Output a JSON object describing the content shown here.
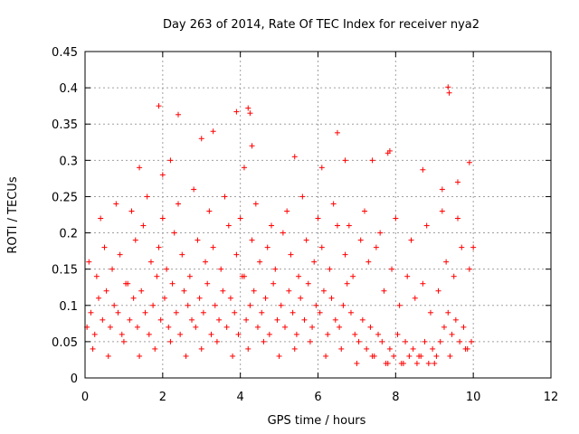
{
  "chart_data": {
    "type": "scatter",
    "title": "Day 263 of 2014, Rate Of TEC Index for receiver nya2",
    "xlabel": "GPS time / hours",
    "ylabel": "ROTI / TECUs",
    "xlim": [
      0,
      12
    ],
    "ylim": [
      0,
      0.45
    ],
    "x_ticks": [
      0,
      2,
      4,
      6,
      8,
      10,
      12
    ],
    "x_tick_labels": [
      "0",
      "2",
      "4",
      "6",
      "8",
      "10",
      "12"
    ],
    "y_ticks": [
      0,
      0.05,
      0.1,
      0.15,
      0.2,
      0.25,
      0.3,
      0.35,
      0.4,
      0.45
    ],
    "y_tick_labels": [
      "0",
      "0.05",
      "0.1",
      "0.15",
      "0.2",
      "0.25",
      "0.3",
      "0.35",
      "0.4",
      "0.45"
    ],
    "grid": true,
    "marker": "+",
    "color": "#ff0000",
    "series": [
      {
        "name": "nya2",
        "x": [
          0.05,
          0.15,
          0.25,
          0.35,
          0.45,
          0.55,
          0.65,
          0.75,
          0.85,
          0.95,
          1.05,
          1.15,
          1.25,
          1.35,
          1.45,
          1.55,
          1.65,
          1.75,
          1.85,
          1.95,
          2.05,
          2.15,
          2.25,
          2.35,
          2.45,
          2.55,
          2.65,
          2.75,
          2.85,
          2.95,
          3.05,
          3.15,
          3.25,
          3.35,
          3.45,
          3.55,
          3.65,
          3.75,
          3.85,
          3.95,
          4.05,
          4.15,
          4.25,
          4.35,
          4.45,
          4.55,
          4.65,
          4.75,
          4.85,
          4.95,
          5.05,
          5.15,
          5.25,
          5.35,
          5.45,
          5.55,
          5.65,
          5.75,
          5.85,
          5.95,
          6.05,
          6.15,
          6.25,
          6.35,
          6.45,
          6.55,
          6.65,
          6.75,
          6.85,
          6.95,
          7.05,
          7.15,
          7.25,
          7.35,
          7.45,
          7.55,
          7.65,
          7.75,
          7.85,
          7.95,
          8.05,
          8.15,
          8.25,
          8.35,
          8.45,
          8.55,
          8.65,
          8.75,
          8.85,
          8.95,
          9.05,
          9.15,
          9.25,
          9.35,
          9.45,
          9.55,
          9.65,
          9.75,
          9.85,
          9.95,
          0.1,
          0.3,
          0.5,
          0.7,
          0.9,
          1.1,
          1.3,
          1.5,
          1.7,
          1.9,
          2.1,
          2.3,
          2.5,
          2.7,
          2.9,
          3.1,
          3.3,
          3.5,
          3.7,
          3.9,
          4.1,
          4.3,
          4.5,
          4.7,
          4.9,
          5.1,
          5.3,
          5.5,
          5.7,
          5.9,
          6.1,
          6.3,
          6.5,
          6.7,
          6.9,
          7.1,
          7.3,
          7.5,
          7.7,
          7.9,
          8.1,
          8.3,
          8.5,
          8.7,
          8.9,
          9.1,
          9.3,
          9.5,
          9.7,
          9.9,
          0.2,
          0.6,
          1.0,
          1.4,
          1.8,
          2.2,
          2.6,
          3.0,
          3.4,
          3.8,
          4.2,
          4.6,
          5.0,
          5.4,
          5.8,
          6.2,
          6.6,
          7.0,
          7.4,
          7.8,
          8.2,
          8.6,
          9.0,
          9.4,
          9.8,
          1.9,
          2.4,
          3.9,
          4.2,
          4.25,
          6.5,
          7.85,
          9.35,
          9.38,
          9.9,
          1.4,
          2.0,
          2.2,
          3.0,
          3.3,
          4.1,
          4.3,
          5.4,
          6.1,
          6.7,
          7.4,
          7.8,
          8.7,
          9.2,
          9.6,
          0.4,
          0.8,
          1.2,
          1.6,
          2.0,
          2.4,
          2.8,
          3.2,
          3.6,
          4.0,
          4.4,
          4.8,
          5.2,
          5.6,
          6.0,
          6.4,
          6.8,
          7.2,
          7.6,
          8.0,
          8.4,
          8.8,
          9.2,
          9.6,
          10.0
        ],
        "y": [
          0.07,
          0.09,
          0.06,
          0.11,
          0.08,
          0.12,
          0.07,
          0.1,
          0.09,
          0.06,
          0.13,
          0.08,
          0.11,
          0.07,
          0.12,
          0.09,
          0.06,
          0.1,
          0.14,
          0.08,
          0.11,
          0.07,
          0.13,
          0.09,
          0.06,
          0.12,
          0.1,
          0.08,
          0.07,
          0.11,
          0.09,
          0.13,
          0.06,
          0.1,
          0.08,
          0.12,
          0.07,
          0.11,
          0.09,
          0.06,
          0.14,
          0.08,
          0.1,
          0.12,
          0.07,
          0.09,
          0.11,
          0.06,
          0.13,
          0.08,
          0.1,
          0.07,
          0.12,
          0.09,
          0.06,
          0.11,
          0.08,
          0.13,
          0.07,
          0.1,
          0.09,
          0.12,
          0.06,
          0.11,
          0.08,
          0.07,
          0.1,
          0.13,
          0.09,
          0.06,
          0.05,
          0.08,
          0.04,
          0.07,
          0.03,
          0.06,
          0.05,
          0.02,
          0.04,
          0.03,
          0.06,
          0.02,
          0.05,
          0.03,
          0.04,
          0.02,
          0.03,
          0.05,
          0.02,
          0.04,
          0.03,
          0.05,
          0.07,
          0.09,
          0.06,
          0.08,
          0.05,
          0.07,
          0.04,
          0.05,
          0.16,
          0.14,
          0.18,
          0.15,
          0.17,
          0.13,
          0.19,
          0.21,
          0.16,
          0.18,
          0.15,
          0.2,
          0.17,
          0.14,
          0.19,
          0.16,
          0.18,
          0.15,
          0.21,
          0.17,
          0.14,
          0.19,
          0.16,
          0.18,
          0.15,
          0.2,
          0.17,
          0.14,
          0.19,
          0.16,
          0.18,
          0.15,
          0.21,
          0.17,
          0.14,
          0.19,
          0.16,
          0.18,
          0.12,
          0.15,
          0.1,
          0.14,
          0.11,
          0.13,
          0.09,
          0.12,
          0.16,
          0.14,
          0.18,
          0.15,
          0.04,
          0.03,
          0.05,
          0.03,
          0.04,
          0.05,
          0.03,
          0.04,
          0.05,
          0.03,
          0.04,
          0.05,
          0.03,
          0.04,
          0.05,
          0.03,
          0.04,
          0.02,
          0.03,
          0.02,
          0.02,
          0.03,
          0.02,
          0.03,
          0.04,
          0.375,
          0.363,
          0.367,
          0.372,
          0.365,
          0.338,
          0.313,
          0.401,
          0.393,
          0.297,
          0.29,
          0.28,
          0.3,
          0.33,
          0.34,
          0.29,
          0.32,
          0.305,
          0.29,
          0.3,
          0.3,
          0.31,
          0.287,
          0.26,
          0.27,
          0.22,
          0.24,
          0.23,
          0.25,
          0.22,
          0.24,
          0.26,
          0.23,
          0.25,
          0.22,
          0.24,
          0.21,
          0.23,
          0.25,
          0.22,
          0.24,
          0.21,
          0.23,
          0.2,
          0.22,
          0.19,
          0.21,
          0.23,
          0.22,
          0.18
        ]
      }
    ]
  }
}
